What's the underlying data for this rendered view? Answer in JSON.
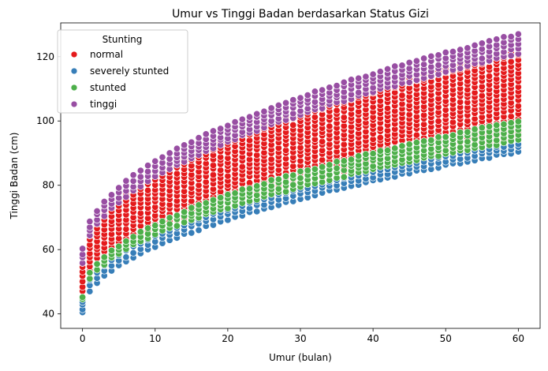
{
  "chart_data": {
    "type": "scatter",
    "title": "Umur vs Tinggi Badan berdasarkan Status Gizi",
    "xlabel": "Umur (bulan)",
    "ylabel": "Tinggi Badan (cm)",
    "xlim": [
      -3,
      63
    ],
    "ylim": [
      35.5,
      130.5
    ],
    "xticks": [
      0,
      10,
      20,
      30,
      40,
      50,
      60
    ],
    "yticks": [
      40,
      60,
      80,
      100,
      120
    ],
    "grid": false,
    "legend": {
      "title": "Stunting",
      "placement": "top-left"
    },
    "series": [
      {
        "name": "normal",
        "color": "#e41a1c",
        "band": {
          "x_start": 0,
          "x_end": 60,
          "low_start": 47,
          "low_end": 95,
          "high_start": 56,
          "high_end": 122
        }
      },
      {
        "name": "severely stunted",
        "color": "#377eb8",
        "band": {
          "x_start": 0,
          "x_end": 60,
          "low_start": 40.5,
          "low_end": 90.5,
          "high_start": 44,
          "high_end": 93
        }
      },
      {
        "name": "stunted",
        "color": "#4daf4a",
        "band": {
          "x_start": 0,
          "x_end": 60,
          "low_start": 44.5,
          "low_end": 94,
          "high_start": 45.5,
          "high_end": 100
        }
      },
      {
        "name": "tinggi",
        "color": "#984ea3",
        "band": {
          "x_start": 0,
          "x_end": 60,
          "low_start": 56,
          "low_end": 121,
          "high_start": 60,
          "high_end": 127
        }
      }
    ]
  }
}
